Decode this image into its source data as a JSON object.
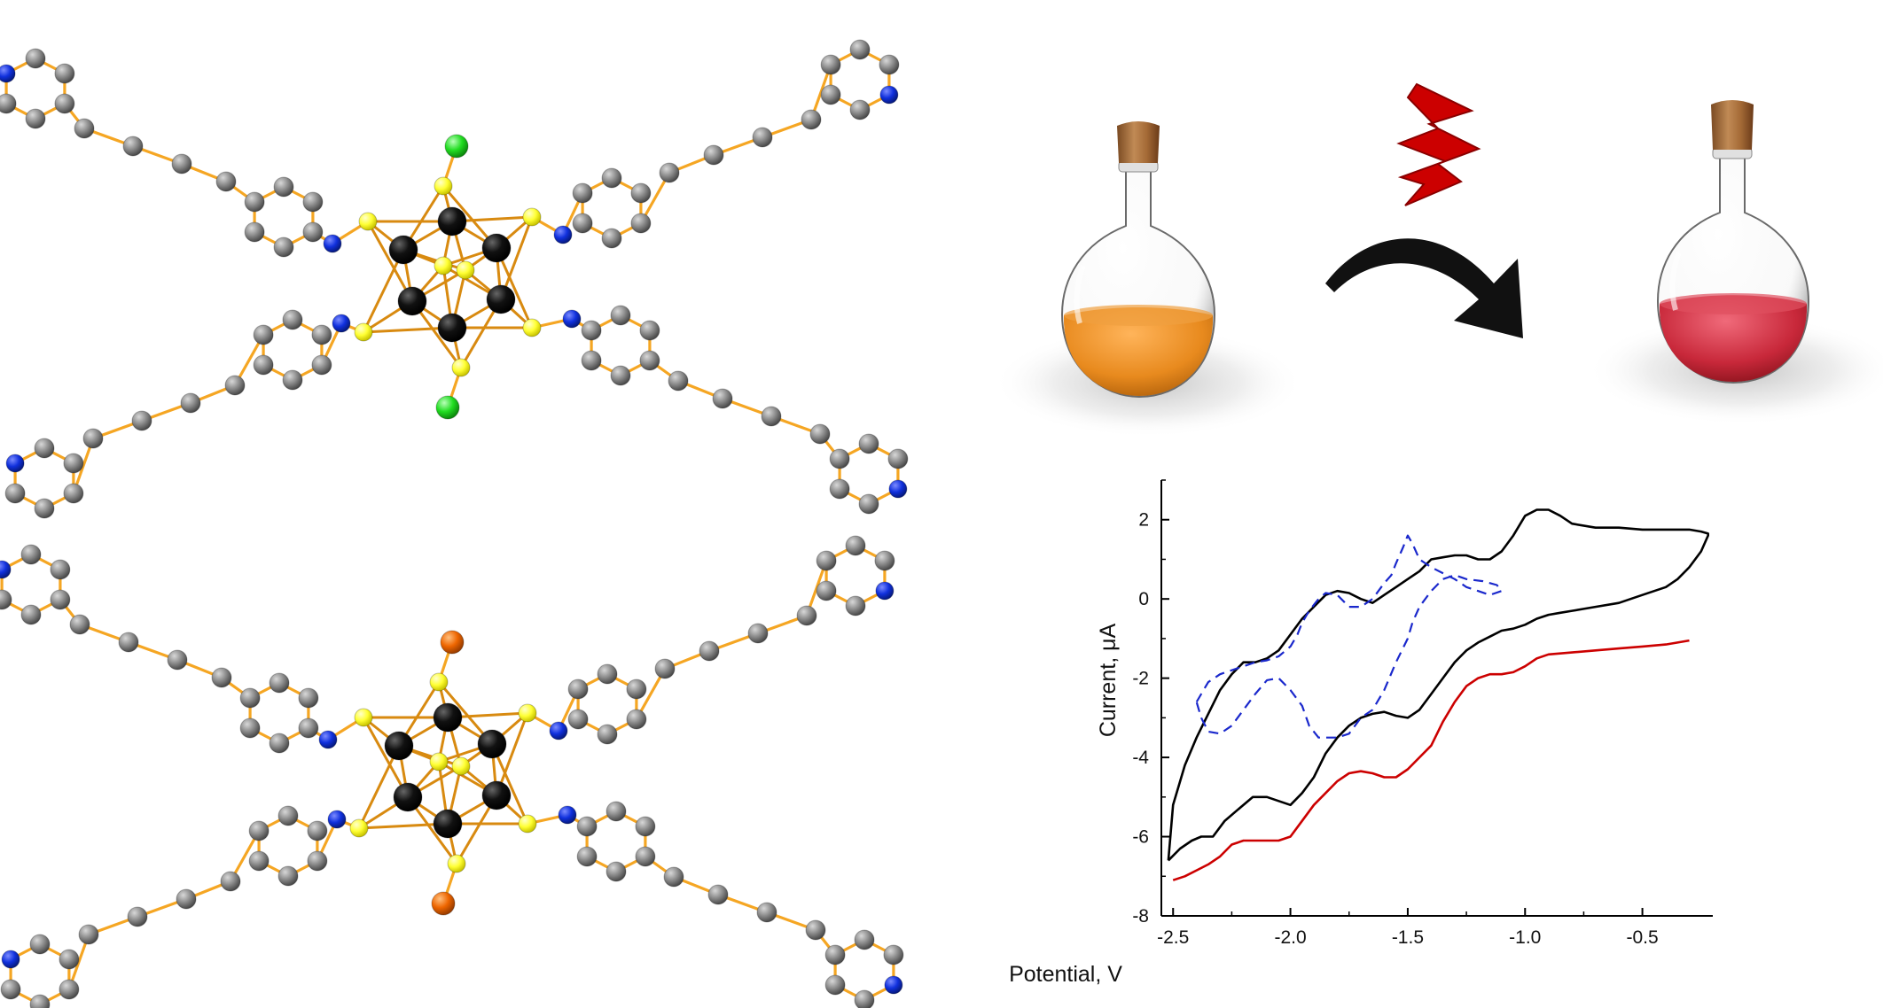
{
  "figure": {
    "molecules": [
      {
        "name": "top-cluster",
        "apical_atom_color": "#22dd22"
      },
      {
        "name": "bottom-cluster",
        "apical_atom_color": "#ee6600"
      }
    ],
    "colors": {
      "carbon": "#8a8a8a",
      "nitrogen": "#1030dd",
      "metal": "#111111",
      "sulfur": "#ffff33",
      "bond": "#f5a623",
      "orange_solution": "#e88a1e",
      "red_solution": "#c8283a",
      "lightning": "#cc0000",
      "arrow": "#111111"
    },
    "icons": [
      "flask-orange",
      "lightning-bolt",
      "curved-arrow",
      "flask-red"
    ]
  },
  "chart_data": {
    "type": "line",
    "xlabel": "Potential, V",
    "ylabel": "Current, μA",
    "xlim": [
      -2.55,
      -0.2
    ],
    "ylim": [
      -8,
      3
    ],
    "x_ticks": [
      -2.5,
      -2.0,
      -1.5,
      -1.0,
      -0.5
    ],
    "x_tick_labels": [
      "-2.5",
      "-2.0",
      "-1.5",
      "-1.0",
      "-0.5"
    ],
    "y_ticks": [
      -8,
      -6,
      -4,
      -2,
      0,
      2
    ],
    "y_tick_labels": [
      "-8",
      "-6",
      "-4",
      "-2",
      "0",
      "2"
    ],
    "grid": false,
    "series": [
      {
        "color": "#000000",
        "style": "solid",
        "x": [
          -2.52,
          -2.47,
          -2.42,
          -2.38,
          -2.33,
          -2.28,
          -2.22,
          -2.16,
          -2.1,
          -2.05,
          -2.0,
          -1.95,
          -1.9,
          -1.85,
          -1.8,
          -1.75,
          -1.7,
          -1.65,
          -1.6,
          -1.55,
          -1.5,
          -1.45,
          -1.4,
          -1.35,
          -1.3,
          -1.25,
          -1.2,
          -1.15,
          -1.1,
          -1.05,
          -1.0,
          -0.95,
          -0.9,
          -0.85,
          -0.8,
          -0.75,
          -0.7,
          -0.6,
          -0.5,
          -0.4,
          -0.35,
          -0.3,
          -0.25,
          -0.22,
          -0.22,
          -0.25,
          -0.3,
          -0.4,
          -0.5,
          -0.6,
          -0.7,
          -0.8,
          -0.85,
          -0.9,
          -0.95,
          -1.0,
          -1.05,
          -1.1,
          -1.15,
          -1.2,
          -1.25,
          -1.3,
          -1.35,
          -1.4,
          -1.45,
          -1.5,
          -1.55,
          -1.6,
          -1.65,
          -1.7,
          -1.75,
          -1.8,
          -1.85,
          -1.9,
          -1.95,
          -2.0,
          -2.05,
          -2.1,
          -2.15,
          -2.2,
          -2.25,
          -2.3,
          -2.35,
          -2.4,
          -2.45,
          -2.5,
          -2.52
        ],
        "y": [
          -6.6,
          -6.3,
          -6.1,
          -6.0,
          -6.0,
          -5.6,
          -5.3,
          -5.0,
          -5.0,
          -5.1,
          -5.2,
          -4.9,
          -4.5,
          -3.9,
          -3.5,
          -3.2,
          -3.0,
          -2.9,
          -2.85,
          -2.95,
          -3.0,
          -2.8,
          -2.4,
          -2.0,
          -1.6,
          -1.3,
          -1.1,
          -0.95,
          -0.8,
          -0.75,
          -0.65,
          -0.5,
          -0.4,
          -0.35,
          -0.3,
          -0.25,
          -0.2,
          -0.1,
          0.1,
          0.3,
          0.5,
          0.8,
          1.2,
          1.6,
          1.65,
          1.7,
          1.75,
          1.75,
          1.75,
          1.8,
          1.8,
          1.9,
          2.1,
          2.25,
          2.25,
          2.1,
          1.6,
          1.2,
          1.0,
          1.0,
          1.1,
          1.1,
          1.05,
          1.0,
          0.7,
          0.5,
          0.3,
          0.1,
          -0.1,
          0.0,
          0.15,
          0.2,
          0.1,
          -0.2,
          -0.5,
          -0.9,
          -1.3,
          -1.5,
          -1.6,
          -1.6,
          -1.9,
          -2.3,
          -2.9,
          -3.5,
          -4.2,
          -5.2,
          -6.6
        ]
      },
      {
        "color": "#cc0000",
        "style": "solid",
        "x": [
          -2.5,
          -2.45,
          -2.4,
          -2.35,
          -2.3,
          -2.25,
          -2.2,
          -2.15,
          -2.1,
          -2.05,
          -2.0,
          -1.95,
          -1.9,
          -1.85,
          -1.8,
          -1.75,
          -1.7,
          -1.65,
          -1.6,
          -1.55,
          -1.5,
          -1.45,
          -1.4,
          -1.35,
          -1.3,
          -1.25,
          -1.2,
          -1.15,
          -1.1,
          -1.05,
          -1.0,
          -0.95,
          -0.9,
          -0.8,
          -0.7,
          -0.6,
          -0.5,
          -0.4,
          -0.3
        ],
        "y": [
          -7.1,
          -7.0,
          -6.85,
          -6.7,
          -6.5,
          -6.2,
          -6.1,
          -6.1,
          -6.1,
          -6.1,
          -6.0,
          -5.6,
          -5.2,
          -4.9,
          -4.6,
          -4.4,
          -4.35,
          -4.4,
          -4.5,
          -4.5,
          -4.3,
          -4.0,
          -3.7,
          -3.1,
          -2.6,
          -2.2,
          -2.0,
          -1.9,
          -1.9,
          -1.85,
          -1.7,
          -1.5,
          -1.4,
          -1.35,
          -1.3,
          -1.25,
          -1.2,
          -1.15,
          -1.05
        ]
      },
      {
        "color": "#1a28cc",
        "style": "dashed",
        "x": [
          -2.4,
          -2.38,
          -2.35,
          -2.3,
          -2.25,
          -2.2,
          -2.15,
          -2.1,
          -2.05,
          -2.0,
          -1.97,
          -1.95,
          -1.92,
          -1.88,
          -1.85,
          -1.8,
          -1.75,
          -1.7,
          -1.65,
          -1.6,
          -1.57,
          -1.55,
          -1.52,
          -1.5,
          -1.48,
          -1.45,
          -1.4,
          -1.35,
          -1.3,
          -1.25,
          -1.2,
          -1.15,
          -1.1,
          -1.12,
          -1.18,
          -1.25,
          -1.3,
          -1.35,
          -1.4,
          -1.45,
          -1.48,
          -1.5,
          -1.55,
          -1.6,
          -1.65,
          -1.7,
          -1.75,
          -1.8,
          -1.85,
          -1.88,
          -1.92,
          -1.95,
          -2.0,
          -2.05,
          -2.1,
          -2.15,
          -2.2,
          -2.25,
          -2.3,
          -2.35,
          -2.38,
          -2.4
        ],
        "y": [
          -2.6,
          -2.4,
          -2.1,
          -1.9,
          -1.8,
          -1.7,
          -1.6,
          -1.55,
          -1.45,
          -1.2,
          -0.9,
          -0.6,
          -0.3,
          0.0,
          0.15,
          0.1,
          -0.2,
          -0.2,
          0.0,
          0.4,
          0.6,
          0.9,
          1.3,
          1.6,
          1.4,
          1.0,
          0.8,
          0.65,
          0.5,
          0.3,
          0.2,
          0.1,
          0.2,
          0.35,
          0.45,
          0.5,
          0.6,
          0.5,
          0.2,
          -0.2,
          -0.6,
          -1.0,
          -1.6,
          -2.3,
          -2.8,
          -3.0,
          -3.4,
          -3.5,
          -3.5,
          -3.5,
          -3.2,
          -2.7,
          -2.3,
          -2.0,
          -2.05,
          -2.4,
          -2.8,
          -3.2,
          -3.4,
          -3.35,
          -3.0,
          -2.6
        ]
      }
    ]
  }
}
